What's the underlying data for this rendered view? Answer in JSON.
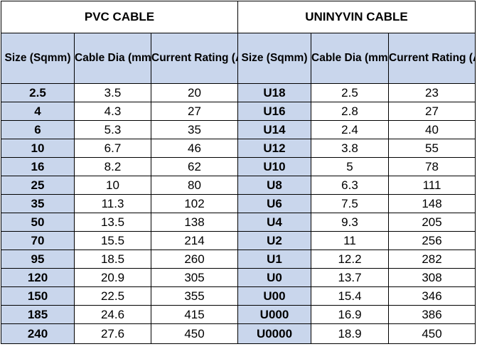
{
  "pvc": {
    "title": "PVC CABLE",
    "headers": [
      "Size (Sqmm)",
      "Cable Dia (mm)",
      "Current Rating (Amp)"
    ]
  },
  "uninyvin": {
    "title": "UNINYVIN CABLE",
    "headers": [
      "Size (Sqmm)",
      "Cable Dia (mm)",
      "Current Rating (Amp)"
    ]
  },
  "colors": {
    "header_fill": "#c9d6ec",
    "border": "#000000"
  },
  "rows": [
    {
      "pvc_size": "2.5",
      "pvc_dia": "3.5",
      "pvc_rating": "20",
      "un_size": "U18",
      "un_dia": "2.5",
      "un_rating": "23"
    },
    {
      "pvc_size": "4",
      "pvc_dia": "4.3",
      "pvc_rating": "27",
      "un_size": "U16",
      "un_dia": "2.8",
      "un_rating": "27"
    },
    {
      "pvc_size": "6",
      "pvc_dia": "5.3",
      "pvc_rating": "35",
      "un_size": "U14",
      "un_dia": "2.4",
      "un_rating": "40"
    },
    {
      "pvc_size": "10",
      "pvc_dia": "6.7",
      "pvc_rating": "46",
      "un_size": "U12",
      "un_dia": "3.8",
      "un_rating": "55"
    },
    {
      "pvc_size": "16",
      "pvc_dia": "8.2",
      "pvc_rating": "62",
      "un_size": "U10",
      "un_dia": "5",
      "un_rating": "78"
    },
    {
      "pvc_size": "25",
      "pvc_dia": "10",
      "pvc_rating": "80",
      "un_size": "U8",
      "un_dia": "6.3",
      "un_rating": "111"
    },
    {
      "pvc_size": "35",
      "pvc_dia": "11.3",
      "pvc_rating": "102",
      "un_size": "U6",
      "un_dia": "7.5",
      "un_rating": "148"
    },
    {
      "pvc_size": "50",
      "pvc_dia": "13.5",
      "pvc_rating": "138",
      "un_size": "U4",
      "un_dia": "9.3",
      "un_rating": "205"
    },
    {
      "pvc_size": "70",
      "pvc_dia": "15.5",
      "pvc_rating": "214",
      "un_size": "U2",
      "un_dia": "11",
      "un_rating": "256"
    },
    {
      "pvc_size": "95",
      "pvc_dia": "18.5",
      "pvc_rating": "260",
      "un_size": "U1",
      "un_dia": "12.2",
      "un_rating": "282"
    },
    {
      "pvc_size": "120",
      "pvc_dia": "20.9",
      "pvc_rating": "305",
      "un_size": "U0",
      "un_dia": "13.7",
      "un_rating": "308"
    },
    {
      "pvc_size": "150",
      "pvc_dia": "22.5",
      "pvc_rating": "355",
      "un_size": "U00",
      "un_dia": "15.4",
      "un_rating": "346"
    },
    {
      "pvc_size": "185",
      "pvc_dia": "24.6",
      "pvc_rating": "415",
      "un_size": "U000",
      "un_dia": "16.9",
      "un_rating": "386"
    },
    {
      "pvc_size": "240",
      "pvc_dia": "27.6",
      "pvc_rating": "450",
      "un_size": "U0000",
      "un_dia": "18.9",
      "un_rating": "450"
    }
  ]
}
